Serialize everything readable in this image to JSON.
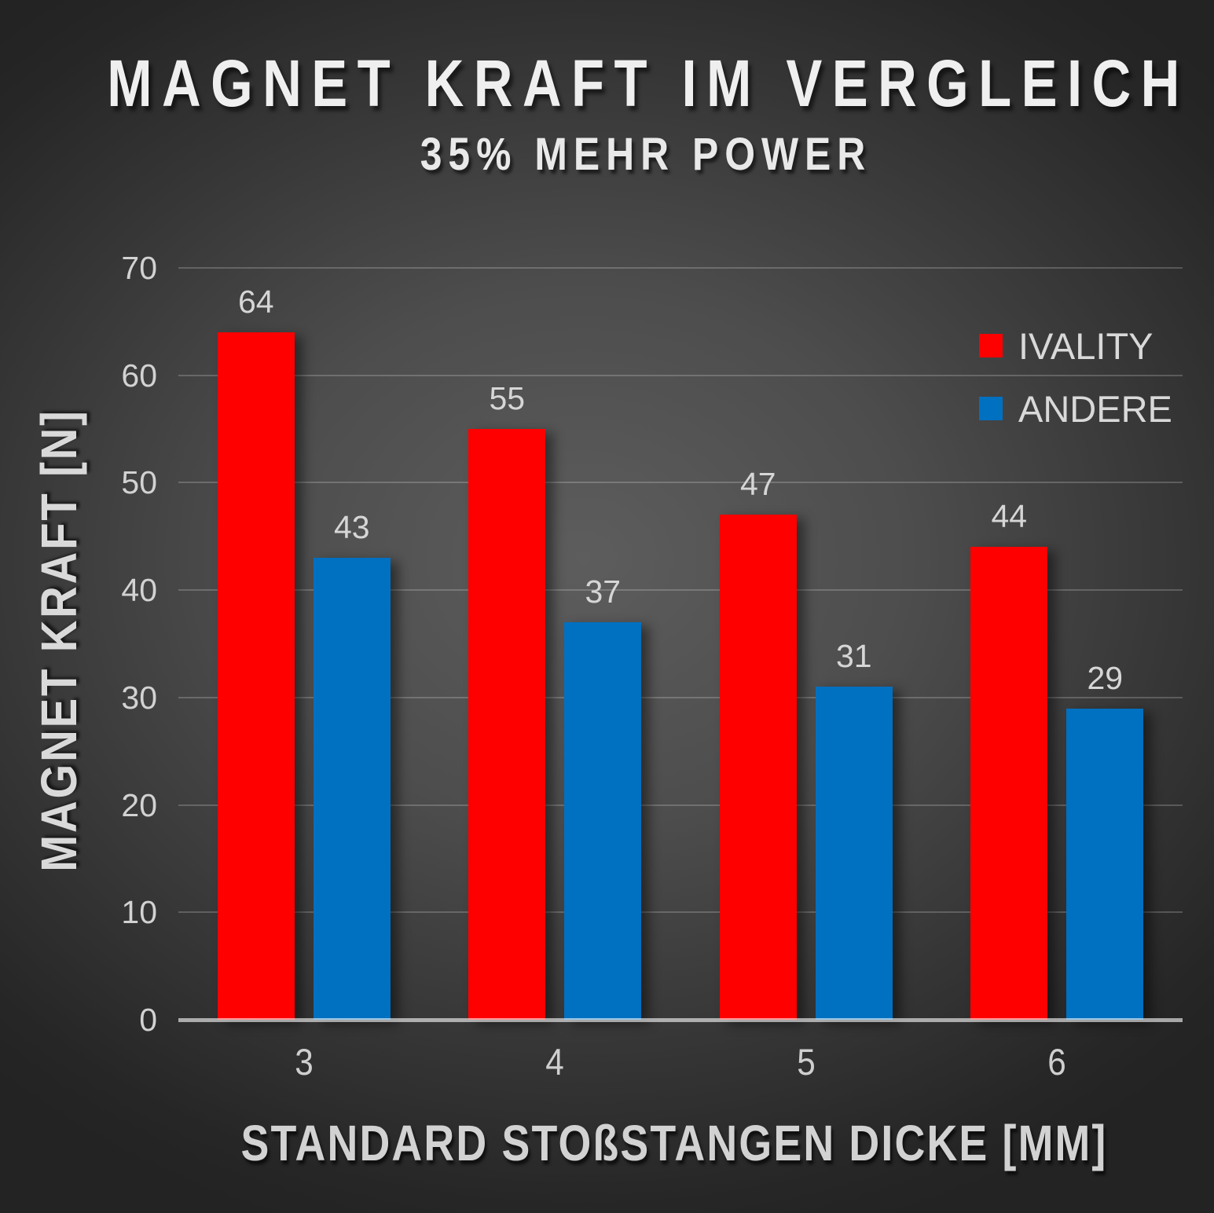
{
  "title": "MAGNET KRAFT IM VERGLEICH",
  "subtitle": "35% MEHR POWER",
  "colors": {
    "ivality_red": "#ff0000",
    "andere_blue": "#0070c0",
    "label_text": "#d6d6d6",
    "background_center": "#5d5d5d",
    "background_edge": "#232323"
  },
  "legend": {
    "items": [
      {
        "label": "IVALITY",
        "color": "#ff0000"
      },
      {
        "label": "ANDERE",
        "color": "#0070c0"
      }
    ]
  },
  "chart_data": {
    "type": "bar",
    "title": "MAGNET KRAFT IM VERGLEICH",
    "subtitle": "35% MEHR POWER",
    "categories": [
      "3",
      "4",
      "5",
      "6"
    ],
    "series": [
      {
        "name": "IVALITY",
        "color": "#ff0000",
        "values": [
          64,
          55,
          47,
          44
        ]
      },
      {
        "name": "ANDERE",
        "color": "#0070c0",
        "values": [
          43,
          37,
          31,
          29
        ]
      }
    ],
    "xlabel": "STANDARD STOßSTANGEN DICKE [MM]",
    "ylabel": "MAGNET KRAFT [N]",
    "ylim": [
      0,
      70
    ],
    "ytick_step": 10,
    "yticks": [
      0,
      10,
      20,
      30,
      40,
      50,
      60,
      70
    ],
    "grid": true,
    "legend_position": "upper-right"
  }
}
